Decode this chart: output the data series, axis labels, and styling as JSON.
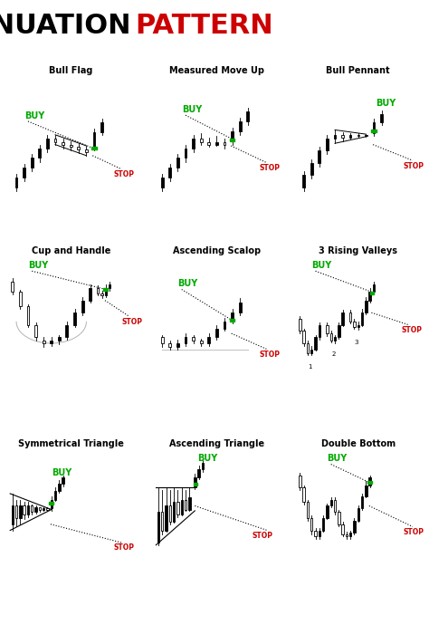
{
  "bg_color": "#ffffff",
  "green": "#00aa00",
  "red": "#cc0000",
  "black": "#000000",
  "title_fontsize": 22,
  "label_fontsize": 7,
  "buy_fontsize": 7,
  "stop_fontsize": 5.5,
  "patterns": [
    "Bull Flag",
    "Measured Move Up",
    "Bull Pennant",
    "Cup and Handle",
    "Ascending Scalop",
    "3 Rising Valleys",
    "Symmetrical Triangle",
    "Ascending Triangle",
    "Double Bottom"
  ]
}
